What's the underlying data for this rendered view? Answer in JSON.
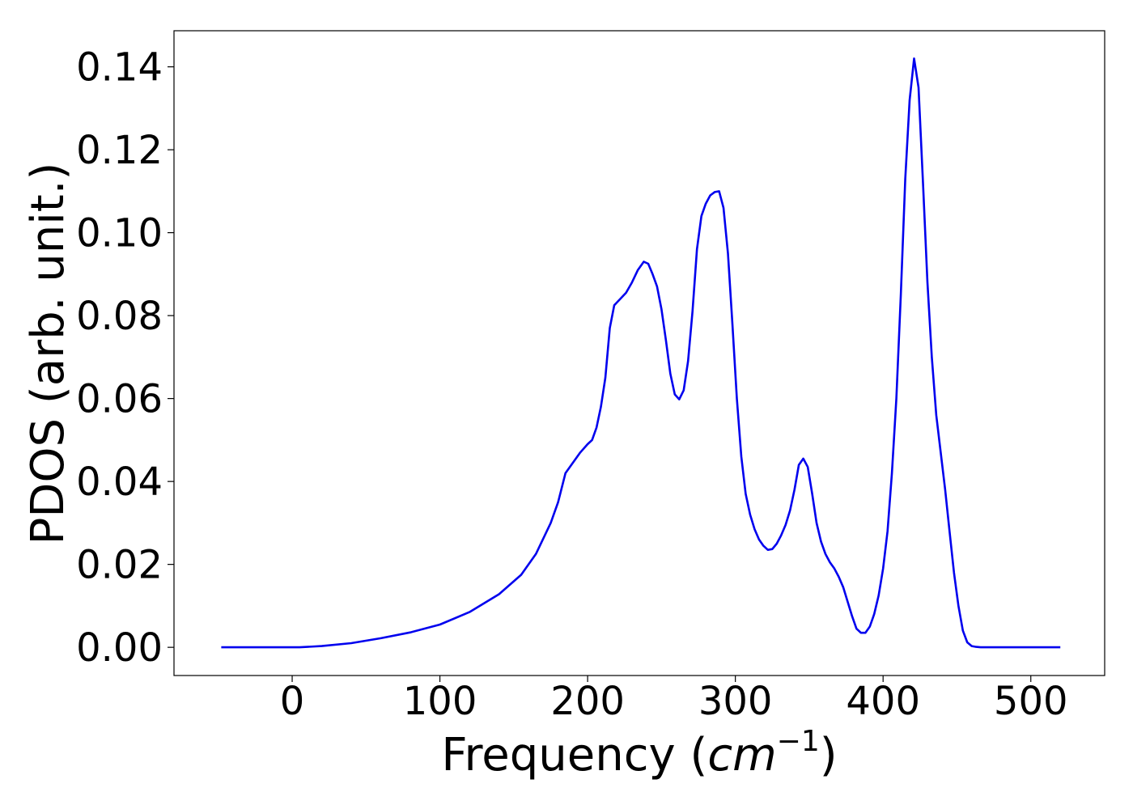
{
  "chart_data": {
    "type": "line",
    "title": "",
    "xlabel_main": "Frequency (",
    "xlabel_unit": "cm",
    "xlabel_exp": "−1",
    "xlabel_close": ")",
    "ylabel": "PDOS (arb. unit.)",
    "xlim": [
      -80,
      550
    ],
    "ylim": [
      -0.0068,
      0.1487
    ],
    "xticks": [
      0,
      100,
      200,
      300,
      400,
      500
    ],
    "xtick_labels": [
      "0",
      "100",
      "200",
      "300",
      "400",
      "500"
    ],
    "yticks": [
      0.0,
      0.02,
      0.04,
      0.06,
      0.08,
      0.1,
      0.12,
      0.14
    ],
    "ytick_labels": [
      "0.00",
      "0.02",
      "0.04",
      "0.06",
      "0.08",
      "0.10",
      "0.12",
      "0.14"
    ],
    "grid": false,
    "series": [
      {
        "color": "#0000ee",
        "x": [
          -48,
          -20,
          0,
          5,
          20,
          40,
          60,
          80,
          100,
          120,
          140,
          155,
          165,
          175,
          180,
          185,
          195,
          200,
          203,
          206,
          209,
          212,
          215,
          218,
          222,
          226,
          230,
          234,
          238,
          241,
          244,
          247,
          250,
          253,
          256,
          259,
          262,
          265,
          268,
          271,
          274,
          277,
          280,
          283,
          286,
          289,
          292,
          295,
          298,
          301,
          304,
          307,
          310,
          313,
          316,
          319,
          322,
          325,
          328,
          331,
          334,
          337,
          340,
          343,
          346,
          349,
          352,
          355,
          358,
          361,
          364,
          367,
          370,
          373,
          376,
          379,
          382,
          385,
          388,
          391,
          394,
          397,
          400,
          403,
          406,
          409,
          412,
          415,
          418,
          421,
          424,
          427,
          430,
          433,
          436,
          439,
          442,
          445,
          448,
          451,
          454,
          457,
          460,
          463,
          466,
          469,
          472,
          475,
          478,
          481,
          484,
          487,
          490,
          500,
          520
        ],
        "y": [
          0,
          0,
          0,
          0.0,
          0.0003,
          0.001,
          0.0022,
          0.0036,
          0.0055,
          0.0085,
          0.0128,
          0.0175,
          0.0225,
          0.03,
          0.035,
          0.042,
          0.047,
          0.049,
          0.05,
          0.053,
          0.058,
          0.065,
          0.077,
          0.0825,
          0.084,
          0.0855,
          0.088,
          0.091,
          0.093,
          0.0925,
          0.09,
          0.087,
          0.0815,
          0.074,
          0.066,
          0.061,
          0.0598,
          0.062,
          0.069,
          0.081,
          0.096,
          0.104,
          0.107,
          0.109,
          0.1098,
          0.11,
          0.106,
          0.095,
          0.078,
          0.06,
          0.046,
          0.037,
          0.032,
          0.0285,
          0.026,
          0.0245,
          0.0235,
          0.0237,
          0.025,
          0.027,
          0.0295,
          0.033,
          0.038,
          0.044,
          0.0455,
          0.0435,
          0.037,
          0.03,
          0.0255,
          0.0225,
          0.0205,
          0.019,
          0.017,
          0.0145,
          0.011,
          0.0075,
          0.0045,
          0.0035,
          0.0035,
          0.005,
          0.008,
          0.0125,
          0.019,
          0.028,
          0.042,
          0.06,
          0.085,
          0.113,
          0.132,
          0.142,
          0.135,
          0.112,
          0.088,
          0.07,
          0.056,
          0.047,
          0.038,
          0.028,
          0.018,
          0.01,
          0.004,
          0.0012,
          0.0003,
          0.0001,
          0,
          0,
          0,
          0,
          0,
          0,
          0,
          0,
          0,
          0,
          0
        ]
      }
    ]
  }
}
